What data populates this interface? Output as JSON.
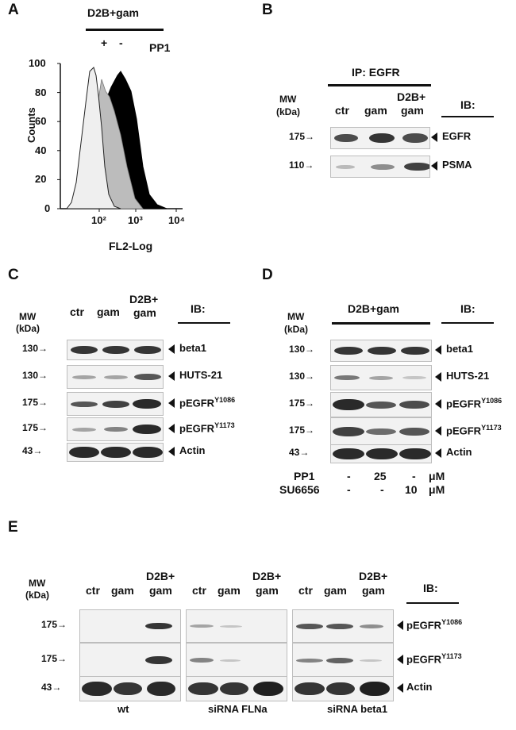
{
  "panel_labels": {
    "a": "A",
    "b": "B",
    "c": "C",
    "d": "D",
    "e": "E"
  },
  "panelA": {
    "treatment": "D2B+gam",
    "plus": "+",
    "minus": "-",
    "inhibitor": "PP1",
    "ylabel": "Counts",
    "xlabel": "FL2-Log",
    "yticks": [
      "0",
      "20",
      "40",
      "60",
      "80",
      "100"
    ],
    "xticks": [
      "10²",
      "10³",
      "10⁴"
    ]
  },
  "panelB": {
    "ip": "IP: EGFR",
    "mw": "MW",
    "kda": "(kDa)",
    "lanes": [
      "ctr",
      "gam",
      "D2B+",
      "gam"
    ],
    "ib": "IB:",
    "rows": [
      {
        "mw": "175→",
        "label": "EGFR"
      },
      {
        "mw": "110→",
        "label": "PSMA"
      }
    ]
  },
  "panelC": {
    "mw": "MW",
    "kda": "(kDa)",
    "lanes": [
      "ctr",
      "gam",
      "D2B+",
      "gam"
    ],
    "ib": "IB:",
    "rows": [
      {
        "mw": "130→",
        "label": "beta1",
        "sup": ""
      },
      {
        "mw": "130→",
        "label": "HUTS-21",
        "sup": ""
      },
      {
        "mw": "175→",
        "label": "pEGFR",
        "sup": "Y1086"
      },
      {
        "mw": "175→",
        "label": "pEGFR",
        "sup": "Y1173"
      },
      {
        "mw": "43→",
        "label": "Actin",
        "sup": ""
      }
    ]
  },
  "panelD": {
    "mw": "MW",
    "kda": "(kDa)",
    "treatment": "D2B+gam",
    "ib": "IB:",
    "rows": [
      {
        "mw": "130→",
        "label": "beta1",
        "sup": ""
      },
      {
        "mw": "130→",
        "label": "HUTS-21",
        "sup": ""
      },
      {
        "mw": "175→",
        "label": "pEGFR",
        "sup": "Y1086"
      },
      {
        "mw": "175→",
        "label": "pEGFR",
        "sup": "Y1173"
      },
      {
        "mw": "43→",
        "label": "Actin",
        "sup": ""
      }
    ],
    "pp1": {
      "name": "PP1",
      "vals": [
        "-",
        "25",
        "-"
      ],
      "unit": "μM"
    },
    "su": {
      "name": "SU6656",
      "vals": [
        "-",
        "-",
        "10"
      ],
      "unit": "μM"
    }
  },
  "panelE": {
    "mw": "MW",
    "kda": "(kDa)",
    "ib": "IB:",
    "lanes": [
      "ctr",
      "gam",
      "D2B+",
      "gam"
    ],
    "groups": [
      "wt",
      "siRNA FLNa",
      "siRNA beta1"
    ],
    "rows": [
      {
        "mw": "175→",
        "label": "pEGFR",
        "sup": "Y1086"
      },
      {
        "mw": "175→",
        "label": "pEGFR",
        "sup": "Y1173"
      },
      {
        "mw": "43→",
        "label": "Actin",
        "sup": ""
      }
    ]
  }
}
